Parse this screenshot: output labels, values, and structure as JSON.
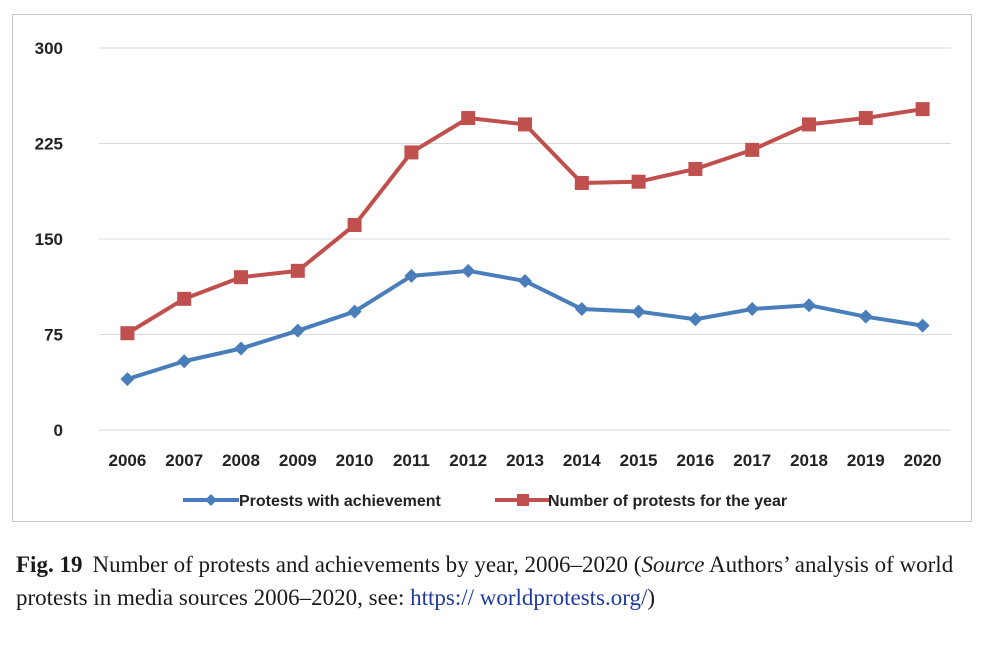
{
  "chart_data": {
    "type": "line",
    "categories": [
      "2006",
      "2007",
      "2008",
      "2009",
      "2010",
      "2011",
      "2012",
      "2013",
      "2014",
      "2015",
      "2016",
      "2017",
      "2018",
      "2019",
      "2020"
    ],
    "ylim": [
      0,
      300
    ],
    "yticks": [
      0,
      75,
      150,
      225,
      300
    ],
    "grid": true,
    "legend_position": "bottom",
    "series": [
      {
        "name": "Protests with achievement",
        "color": "#4a7ebb",
        "marker": "diamond",
        "values": [
          40,
          54,
          64,
          78,
          93,
          121,
          125,
          117,
          95,
          93,
          87,
          95,
          98,
          89,
          82
        ]
      },
      {
        "name": "Number of protests for the year",
        "color": "#c0504d",
        "marker": "square",
        "values": [
          76,
          103,
          120,
          125,
          161,
          218,
          245,
          240,
          194,
          195,
          205,
          220,
          240,
          245,
          252
        ]
      }
    ]
  },
  "caption": {
    "label": "Fig. 19",
    "text": "Number of protests and achievements by year, 2006–2020 (",
    "source_word": "Source",
    "source_text": " Authors’ analysis of world protests in media sources 2006–2020, see: ",
    "link": "https:// worldprotests.org/",
    "closing": ")"
  }
}
